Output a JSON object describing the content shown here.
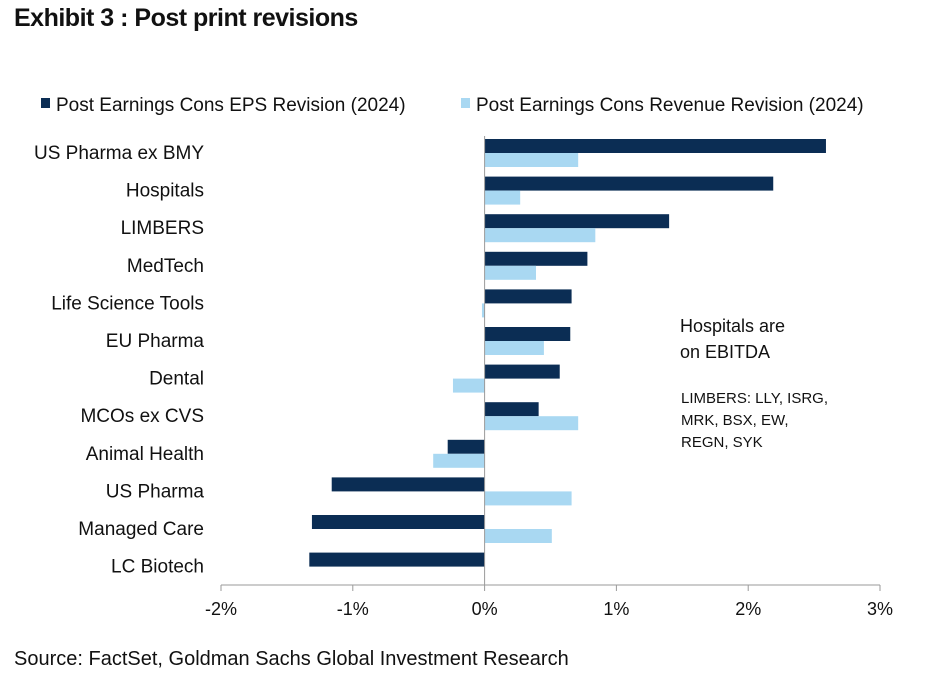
{
  "title": "Exhibit 3 : Post print revisions",
  "source": "Source: FactSet, Goldman Sachs Global Investment Research",
  "annotation": {
    "line1": "Hospitals are",
    "line2": "on EBITDA",
    "limbers_lines": [
      "LIMBERS:  LLY, ISRG,",
      "MRK,  BSX,  EW,",
      "REGN,  SYK"
    ]
  },
  "colors": {
    "eps": "#0b2d54",
    "revenue": "#a9d8f2",
    "axis": "#9a9a9a"
  },
  "chart_data": {
    "type": "bar",
    "orientation": "horizontal",
    "categories": [
      "US Pharma ex BMY",
      "Hospitals",
      "LIMBERS",
      "MedTech",
      "Life Science Tools",
      "EU Pharma",
      "Dental",
      "MCOs ex CVS",
      "Animal Health",
      "US Pharma",
      "Managed Care",
      "LC Biotech"
    ],
    "series": [
      {
        "name": "Post Earnings Cons EPS Revision (2024)",
        "values": [
          2.59,
          2.19,
          1.4,
          0.78,
          0.66,
          0.65,
          0.57,
          0.41,
          -0.28,
          -1.16,
          -1.31,
          -1.33
        ]
      },
      {
        "name": "Post Earnings Cons Revenue Revision (2024)",
        "values": [
          0.71,
          0.27,
          0.84,
          0.39,
          -0.02,
          0.45,
          -0.24,
          0.71,
          -0.39,
          0.66,
          0.51,
          0.0
        ]
      }
    ],
    "xlim": [
      -2,
      3
    ],
    "xticks": [
      -2,
      -1,
      0,
      1,
      2,
      3
    ],
    "xtick_labels": [
      "-2%",
      "-1%",
      "0%",
      "1%",
      "2%",
      "3%"
    ],
    "legend_position": "top",
    "grid": false
  }
}
